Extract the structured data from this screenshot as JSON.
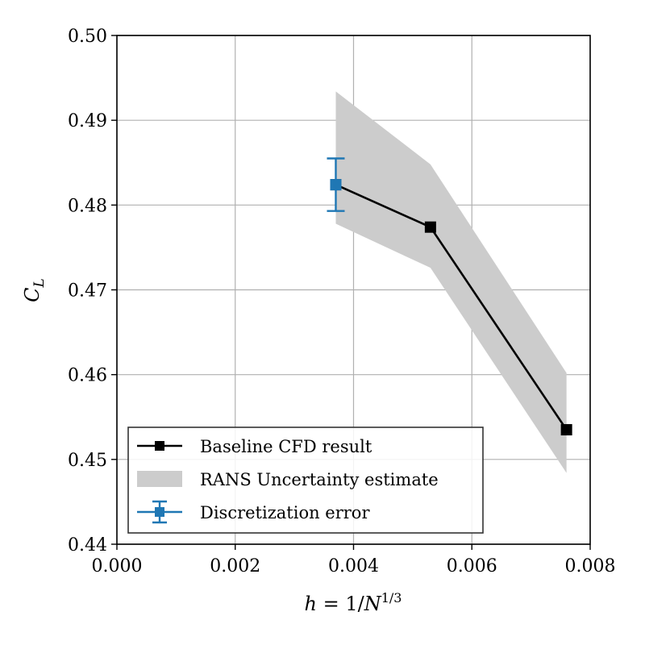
{
  "chart_data": {
    "type": "line",
    "xlabel": "h = 1/N^{1/3}",
    "ylabel": "C_L",
    "xlim": [
      0.0,
      0.008
    ],
    "ylim": [
      0.44,
      0.5
    ],
    "x_ticks": [
      "0.000",
      "0.002",
      "0.004",
      "0.006",
      "0.008"
    ],
    "y_ticks": [
      "0.44",
      "0.45",
      "0.46",
      "0.47",
      "0.48",
      "0.49",
      "0.50"
    ],
    "grid": true,
    "legend_position": "lower-left",
    "series": [
      {
        "name": "Baseline CFD result",
        "kind": "line-marker",
        "color": "#000000",
        "x": [
          0.0037,
          0.0053,
          0.0076
        ],
        "y": [
          0.4824,
          0.4774,
          0.4535
        ]
      },
      {
        "name": "RANS Uncertainty estimate",
        "kind": "band",
        "color": "#cccccc",
        "x": [
          0.0037,
          0.0053,
          0.0076
        ],
        "lower": [
          0.4778,
          0.4726,
          0.4484
        ],
        "upper": [
          0.4934,
          0.4848,
          0.4602
        ]
      },
      {
        "name": "Discretization error",
        "kind": "errorbar",
        "color": "#1f77b4",
        "x": [
          0.0037
        ],
        "y": [
          0.4824
        ],
        "yerr": [
          0.0031
        ]
      }
    ]
  }
}
